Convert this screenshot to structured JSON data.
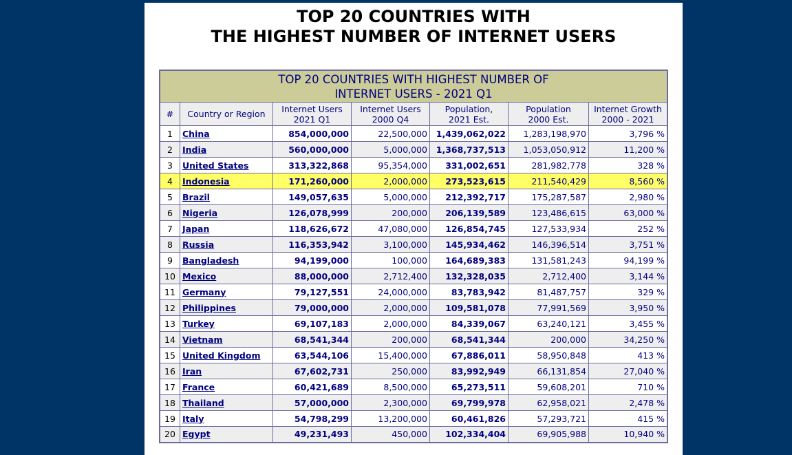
{
  "page": {
    "title_line1": "TOP 20 COUNTRIES WITH",
    "title_line2": "THE HIGHEST NUMBER OF INTERNET USERS"
  },
  "table": {
    "caption_line1": "TOP 20 COUNTRIES WITH HIGHEST NUMBER OF",
    "caption_line2": "INTERNET USERS - 2021 Q1",
    "headers": {
      "rank": "#",
      "country": "Country or Region",
      "users2021_l1": "Internet Users",
      "users2021_l2": "2021 Q1",
      "users2000_l1": "Internet Users",
      "users2000_l2": "2000 Q4",
      "pop2021_l1": "Population,",
      "pop2021_l2": "2021 Est.",
      "pop2000_l1": "Population",
      "pop2000_l2": "2000 Est.",
      "growth_l1": "Internet Growth",
      "growth_l2": "2000 - 2021"
    },
    "highlight_color": "#ffff66",
    "rows": [
      {
        "rank": "1",
        "country": "China",
        "users2021": "854,000,000",
        "users2000": "22,500,000",
        "pop2021": "1,439,062,022",
        "pop2000": "1,283,198,970",
        "growth": "3,796 %"
      },
      {
        "rank": "2",
        "country": "India",
        "users2021": "560,000,000",
        "users2000": "5,000,000",
        "pop2021": "1,368,737,513",
        "pop2000": "1,053,050,912",
        "growth": "11,200 %"
      },
      {
        "rank": "3",
        "country": "United States",
        "users2021": "313,322,868",
        "users2000": "95,354,000",
        "pop2021": "331,002,651",
        "pop2000": "281,982,778",
        "growth": "328 %"
      },
      {
        "rank": "4",
        "country": "Indonesia",
        "users2021": "171,260,000",
        "users2000": "2,000,000",
        "pop2021": "273,523,615",
        "pop2000": "211,540,429",
        "growth": "8,560 %",
        "highlight": true
      },
      {
        "rank": "5",
        "country": "Brazil",
        "users2021": "149,057,635",
        "users2000": "5,000,000",
        "pop2021": "212,392,717",
        "pop2000": "175,287,587",
        "growth": "2,980 %"
      },
      {
        "rank": "6",
        "country": "Nigeria",
        "users2021": "126,078,999",
        "users2000": "200,000",
        "pop2021": "206,139,589",
        "pop2000": "123,486,615",
        "growth": "63,000 %"
      },
      {
        "rank": "7",
        "country": "Japan",
        "users2021": "118,626,672",
        "users2000": "47,080,000",
        "pop2021": "126,854,745",
        "pop2000": "127,533,934",
        "growth": "252 %"
      },
      {
        "rank": "8",
        "country": "Russia",
        "users2021": "116,353,942",
        "users2000": "3,100,000",
        "pop2021": "145,934,462",
        "pop2000": "146,396,514",
        "growth": "3,751 %"
      },
      {
        "rank": "9",
        "country": "Bangladesh",
        "users2021": "94,199,000",
        "users2000": "100,000",
        "pop2021": "164,689,383",
        "pop2000": "131,581,243",
        "growth": "94,199 %"
      },
      {
        "rank": "10",
        "country": "Mexico",
        "users2021": "88,000,000",
        "users2000": "2,712,400",
        "pop2021": "132,328,035",
        "pop2000": "2,712,400",
        "growth": "3,144 %"
      },
      {
        "rank": "11",
        "country": "Germany",
        "users2021": "79,127,551",
        "users2000": "24,000,000",
        "pop2021": "83,783,942",
        "pop2000": "81,487,757",
        "growth": "329 %"
      },
      {
        "rank": "12",
        "country": "Philippines",
        "users2021": "79,000,000",
        "users2000": "2,000,000",
        "pop2021": "109,581,078",
        "pop2000": "77,991,569",
        "growth": "3,950 %"
      },
      {
        "rank": "13",
        "country": "Turkey",
        "users2021": "69,107,183",
        "users2000": "2,000,000",
        "pop2021": "84,339,067",
        "pop2000": "63,240,121",
        "growth": "3,455 %"
      },
      {
        "rank": "14",
        "country": "Vietnam",
        "users2021": "68,541,344",
        "users2000": "200,000",
        "pop2021": "68,541,344",
        "pop2000": "200,000",
        "growth": "34,250 %"
      },
      {
        "rank": "15",
        "country": "United Kingdom",
        "users2021": "63,544,106",
        "users2000": "15,400,000",
        "pop2021": "67,886,011",
        "pop2000": "58,950,848",
        "growth": "413 %"
      },
      {
        "rank": "16",
        "country": "Iran",
        "users2021": "67,602,731",
        "users2000": "250,000",
        "pop2021": "83,992,949",
        "pop2000": "66,131,854",
        "growth": "27,040 %"
      },
      {
        "rank": "17",
        "country": "France",
        "users2021": "60,421,689",
        "users2000": "8,500,000",
        "pop2021": "65,273,511",
        "pop2000": "59,608,201",
        "growth": "710 %"
      },
      {
        "rank": "18",
        "country": "Thailand",
        "users2021": "57,000,000",
        "users2000": "2,300,000",
        "pop2021": "69,799,978",
        "pop2000": "62,958,021",
        "growth": "2,478 %"
      },
      {
        "rank": "19",
        "country": "Italy",
        "users2021": "54,798,299",
        "users2000": "13,200,000",
        "pop2021": "60,461,826",
        "pop2000": "57,293,721",
        "growth": "415 %"
      },
      {
        "rank": "20",
        "country": "Egypt",
        "users2021": "49,231,493",
        "users2000": "450,000",
        "pop2021": "102,334,404",
        "pop2000": "69,905,988",
        "growth": "10,940 %"
      }
    ]
  }
}
